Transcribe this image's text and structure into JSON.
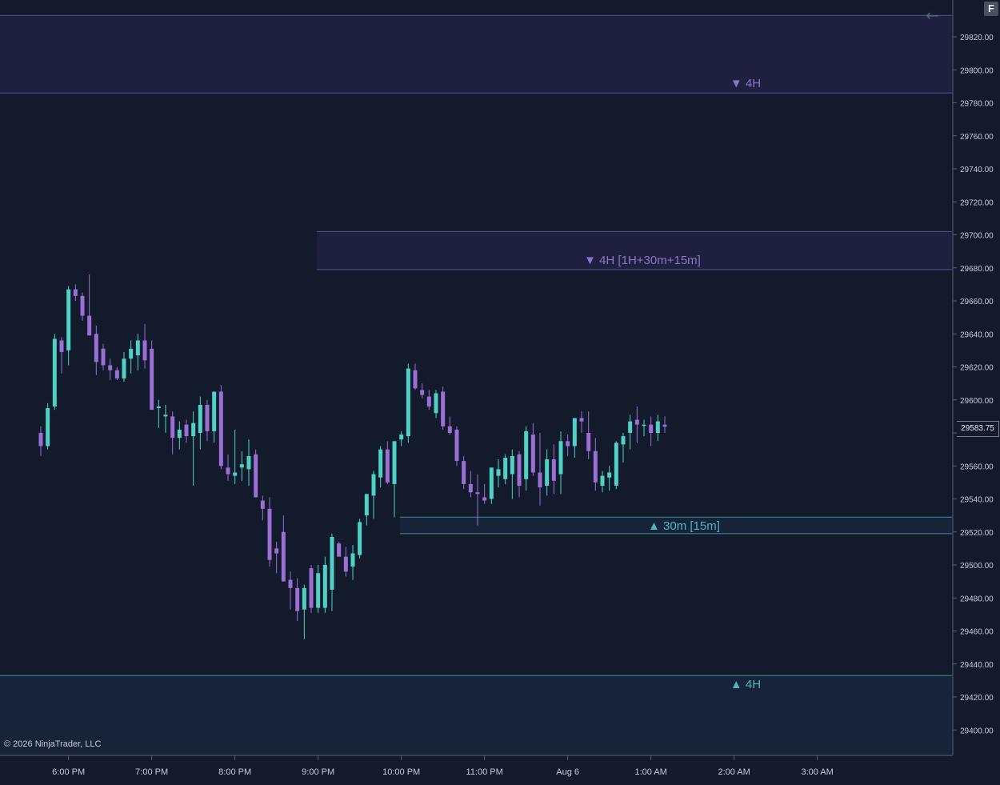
{
  "window": {
    "f_button_label": "F",
    "back_icon": "left-arrow-icon",
    "copyright": "© 2026 NinjaTrader, LLC"
  },
  "colors": {
    "background": "#131a2c",
    "bull": "#4fd1c5",
    "bear": "#9a6fd6",
    "supply_zone_fill": "#1f1f3f",
    "supply_zone_line": "#5b4f9a",
    "demand_zone_fill": "#162339",
    "demand_zone_line": "#3f8f9a",
    "supply_label": "#8a77c8",
    "demand_label": "#4fb5bf"
  },
  "last_price": "29583.75",
  "chart_data": {
    "type": "candlestick",
    "title": "",
    "xlabel": "",
    "ylabel": "",
    "ylim": [
      29380,
      29840
    ],
    "grid": false,
    "x_ticks": [
      "6:00 PM",
      "7:00 PM",
      "8:00 PM",
      "9:00 PM",
      "10:00 PM",
      "11:00 PM",
      "Aug 6",
      "1:00 AM",
      "2:00 AM",
      "3:00 AM"
    ],
    "y_ticks": [
      "29820.00",
      "29800.00",
      "29780.00",
      "29760.00",
      "29740.00",
      "29720.00",
      "29700.00",
      "29680.00",
      "29660.00",
      "29640.00",
      "29620.00",
      "29600.00",
      "29580.00",
      "29560.00",
      "29540.00",
      "29520.00",
      "29500.00",
      "29480.00",
      "29460.00",
      "29440.00",
      "29420.00",
      "29400.00"
    ],
    "time_axis": {
      "first_bar": "17:40",
      "bar_minutes": 5,
      "hour_tick_minutes": [
        "18:00",
        "19:00",
        "20:00",
        "21:00",
        "22:00",
        "23:00",
        "00:00",
        "01:00",
        "02:00",
        "03:00"
      ]
    },
    "zones": [
      {
        "label": "▼ 4H",
        "kind": "supply",
        "top": 29833,
        "bottom": 29786,
        "from": "start"
      },
      {
        "label": "▼ 4H [1H+30m+15m]",
        "kind": "supply",
        "top": 29702,
        "bottom": 29679,
        "from": "20:59"
      },
      {
        "label": "▲ 30m [15m]",
        "kind": "demand",
        "top": 29529,
        "bottom": 29519,
        "from": "21:59"
      },
      {
        "label": "▲ 4H",
        "kind": "demand",
        "top": 29433,
        "bottom": 29380,
        "from": "start"
      }
    ],
    "candles": [
      {
        "o": 29580,
        "h": 29584,
        "l": 29566,
        "c": 29572
      },
      {
        "o": 29572,
        "h": 29598,
        "l": 29570,
        "c": 29595
      },
      {
        "o": 29596,
        "h": 29640,
        "l": 29594,
        "c": 29637
      },
      {
        "o": 29636,
        "h": 29638,
        "l": 29616,
        "c": 29629
      },
      {
        "o": 29630,
        "h": 29669,
        "l": 29621,
        "c": 29667
      },
      {
        "o": 29667,
        "h": 29670,
        "l": 29660,
        "c": 29663
      },
      {
        "o": 29663,
        "h": 29665,
        "l": 29648,
        "c": 29651
      },
      {
        "o": 29651,
        "h": 29676,
        "l": 29640,
        "c": 29639
      },
      {
        "o": 29640,
        "h": 29645,
        "l": 29615,
        "c": 29623
      },
      {
        "o": 29631,
        "h": 29634,
        "l": 29618,
        "c": 29621
      },
      {
        "o": 29621,
        "h": 29625,
        "l": 29612,
        "c": 29618
      },
      {
        "o": 29618,
        "h": 29620,
        "l": 29612,
        "c": 29613
      },
      {
        "o": 29613,
        "h": 29629,
        "l": 29611,
        "c": 29625
      },
      {
        "o": 29625,
        "h": 29636,
        "l": 29616,
        "c": 29631
      },
      {
        "o": 29627,
        "h": 29640,
        "l": 29618,
        "c": 29636
      },
      {
        "o": 29636,
        "h": 29646,
        "l": 29619,
        "c": 29624
      },
      {
        "o": 29631,
        "h": 29636,
        "l": 29594,
        "c": 29594
      },
      {
        "o": 29595,
        "h": 29600,
        "l": 29583,
        "c": 29596
      },
      {
        "o": 29590,
        "h": 29597,
        "l": 29580,
        "c": 29591
      },
      {
        "o": 29590,
        "h": 29593,
        "l": 29567,
        "c": 29577
      },
      {
        "o": 29577,
        "h": 29587,
        "l": 29570,
        "c": 29582
      },
      {
        "o": 29585,
        "h": 29588,
        "l": 29574,
        "c": 29578
      },
      {
        "o": 29578,
        "h": 29593,
        "l": 29548,
        "c": 29586
      },
      {
        "o": 29580,
        "h": 29602,
        "l": 29570,
        "c": 29597
      },
      {
        "o": 29597,
        "h": 29600,
        "l": 29575,
        "c": 29581
      },
      {
        "o": 29581,
        "h": 29605,
        "l": 29574,
        "c": 29605
      },
      {
        "o": 29605,
        "h": 29609,
        "l": 29558,
        "c": 29560
      },
      {
        "o": 29559,
        "h": 29567,
        "l": 29551,
        "c": 29555
      },
      {
        "o": 29554,
        "h": 29582,
        "l": 29549,
        "c": 29556
      },
      {
        "o": 29559,
        "h": 29569,
        "l": 29551,
        "c": 29561
      },
      {
        "o": 29558,
        "h": 29576,
        "l": 29548,
        "c": 29566
      },
      {
        "o": 29567,
        "h": 29570,
        "l": 29541,
        "c": 29541
      },
      {
        "o": 29539,
        "h": 29542,
        "l": 29527,
        "c": 29534
      },
      {
        "o": 29534,
        "h": 29541,
        "l": 29499,
        "c": 29503
      },
      {
        "o": 29510,
        "h": 29514,
        "l": 29495,
        "c": 29507
      },
      {
        "o": 29520,
        "h": 29530,
        "l": 29490,
        "c": 29490
      },
      {
        "o": 29491,
        "h": 29496,
        "l": 29473,
        "c": 29486
      },
      {
        "o": 29486,
        "h": 29492,
        "l": 29466,
        "c": 29472
      },
      {
        "o": 29473,
        "h": 29488,
        "l": 29455,
        "c": 29486
      },
      {
        "o": 29498,
        "h": 29500,
        "l": 29471,
        "c": 29474
      },
      {
        "o": 29474,
        "h": 29500,
        "l": 29471,
        "c": 29495
      },
      {
        "o": 29474,
        "h": 29505,
        "l": 29471,
        "c": 29500
      },
      {
        "o": 29485,
        "h": 29519,
        "l": 29472,
        "c": 29517
      },
      {
        "o": 29513,
        "h": 29514,
        "l": 29505,
        "c": 29505
      },
      {
        "o": 29505,
        "h": 29511,
        "l": 29493,
        "c": 29496
      },
      {
        "o": 29499,
        "h": 29512,
        "l": 29491,
        "c": 29507
      },
      {
        "o": 29506,
        "h": 29528,
        "l": 29504,
        "c": 29526
      },
      {
        "o": 29530,
        "h": 29541,
        "l": 29524,
        "c": 29543
      },
      {
        "o": 29542,
        "h": 29557,
        "l": 29528,
        "c": 29555
      },
      {
        "o": 29553,
        "h": 29572,
        "l": 29547,
        "c": 29570
      },
      {
        "o": 29570,
        "h": 29575,
        "l": 29549,
        "c": 29550
      },
      {
        "o": 29549,
        "h": 29574,
        "l": 29529,
        "c": 29575
      },
      {
        "o": 29576,
        "h": 29581,
        "l": 29572,
        "c": 29579
      },
      {
        "o": 29578,
        "h": 29622,
        "l": 29574,
        "c": 29619
      },
      {
        "o": 29618,
        "h": 29622,
        "l": 29606,
        "c": 29607
      },
      {
        "o": 29606,
        "h": 29610,
        "l": 29601,
        "c": 29603
      },
      {
        "o": 29602,
        "h": 29606,
        "l": 29594,
        "c": 29596
      },
      {
        "o": 29592,
        "h": 29606,
        "l": 29589,
        "c": 29604
      },
      {
        "o": 29605,
        "h": 29608,
        "l": 29582,
        "c": 29584
      },
      {
        "o": 29584,
        "h": 29590,
        "l": 29579,
        "c": 29580
      },
      {
        "o": 29582,
        "h": 29584,
        "l": 29560,
        "c": 29563
      },
      {
        "o": 29563,
        "h": 29566,
        "l": 29546,
        "c": 29549
      },
      {
        "o": 29549,
        "h": 29557,
        "l": 29541,
        "c": 29544
      },
      {
        "o": 29544,
        "h": 29555,
        "l": 29524,
        "c": 29543
      },
      {
        "o": 29541,
        "h": 29549,
        "l": 29537,
        "c": 29539
      },
      {
        "o": 29540,
        "h": 29559,
        "l": 29537,
        "c": 29559
      },
      {
        "o": 29554,
        "h": 29564,
        "l": 29547,
        "c": 29558
      },
      {
        "o": 29552,
        "h": 29567,
        "l": 29549,
        "c": 29565
      },
      {
        "o": 29555,
        "h": 29570,
        "l": 29540,
        "c": 29566
      },
      {
        "o": 29567,
        "h": 29569,
        "l": 29541,
        "c": 29548
      },
      {
        "o": 29552,
        "h": 29584,
        "l": 29545,
        "c": 29581
      },
      {
        "o": 29579,
        "h": 29586,
        "l": 29554,
        "c": 29556
      },
      {
        "o": 29556,
        "h": 29580,
        "l": 29536,
        "c": 29547
      },
      {
        "o": 29548,
        "h": 29570,
        "l": 29542,
        "c": 29564
      },
      {
        "o": 29564,
        "h": 29573,
        "l": 29543,
        "c": 29551
      },
      {
        "o": 29555,
        "h": 29581,
        "l": 29543,
        "c": 29575
      },
      {
        "o": 29575,
        "h": 29579,
        "l": 29566,
        "c": 29572
      },
      {
        "o": 29572,
        "h": 29589,
        "l": 29565,
        "c": 29589
      },
      {
        "o": 29589,
        "h": 29593,
        "l": 29580,
        "c": 29587
      },
      {
        "o": 29580,
        "h": 29593,
        "l": 29564,
        "c": 29569
      },
      {
        "o": 29569,
        "h": 29577,
        "l": 29545,
        "c": 29550
      },
      {
        "o": 29548,
        "h": 29557,
        "l": 29544,
        "c": 29554
      },
      {
        "o": 29553,
        "h": 29560,
        "l": 29545,
        "c": 29556
      },
      {
        "o": 29548,
        "h": 29575,
        "l": 29546,
        "c": 29574
      },
      {
        "o": 29573,
        "h": 29580,
        "l": 29562,
        "c": 29578
      },
      {
        "o": 29580,
        "h": 29591,
        "l": 29570,
        "c": 29587
      },
      {
        "o": 29588,
        "h": 29596,
        "l": 29574,
        "c": 29585
      },
      {
        "o": 29585,
        "h": 29588,
        "l": 29578,
        "c": 29585
      },
      {
        "o": 29585,
        "h": 29590,
        "l": 29572,
        "c": 29580
      },
      {
        "o": 29580,
        "h": 29591,
        "l": 29575,
        "c": 29587
      },
      {
        "o": 29585,
        "h": 29590,
        "l": 29580,
        "c": 29583.75
      }
    ]
  }
}
